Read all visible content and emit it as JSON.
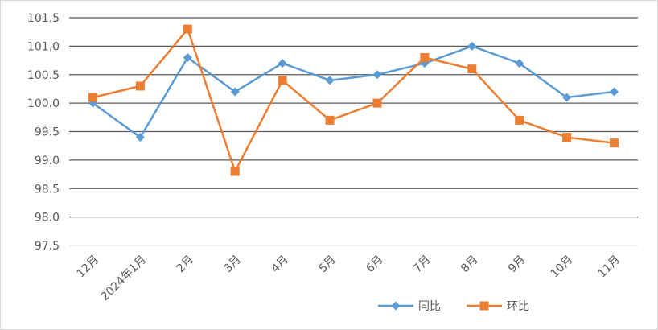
{
  "chart_data": {
    "type": "line",
    "title": "",
    "xlabel": "",
    "ylabel": "",
    "categories": [
      "12月",
      "2024年1月",
      "2月",
      "3月",
      "4月",
      "5月",
      "6月",
      "7月",
      "8月",
      "9月",
      "10月",
      "11月"
    ],
    "y_ticks": [
      "97.5",
      "98.0",
      "98.5",
      "99.0",
      "99.5",
      "100.0",
      "100.5",
      "101.0",
      "101.5"
    ],
    "ylim": [
      97.5,
      101.5
    ],
    "grid": "horizontal",
    "legend": "bottom-right",
    "series": [
      {
        "name": "同比",
        "color": "#5b9bd5",
        "marker": "diamond",
        "values": [
          100.0,
          99.4,
          100.8,
          100.2,
          100.7,
          100.4,
          100.5,
          100.7,
          101.0,
          100.7,
          100.1,
          100.2
        ]
      },
      {
        "name": "环比",
        "color": "#ed7d31",
        "marker": "square",
        "values": [
          100.1,
          100.3,
          101.3,
          98.8,
          100.4,
          99.7,
          100.0,
          100.8,
          100.6,
          99.7,
          99.4,
          99.3
        ]
      }
    ]
  }
}
